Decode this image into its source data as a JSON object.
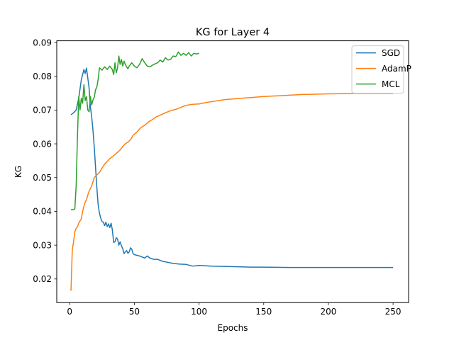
{
  "chart_data": {
    "type": "line",
    "title": "KG for Layer 4",
    "xlabel": "Epochs",
    "ylabel": "KG",
    "xlim": [
      -10,
      262
    ],
    "ylim": [
      0.013,
      0.0905
    ],
    "xticks": [
      0,
      50,
      100,
      150,
      200,
      250
    ],
    "yticks": [
      0.02,
      0.03,
      0.04,
      0.05,
      0.06,
      0.07,
      0.08,
      0.09
    ],
    "legend_position": "top-right",
    "grid": false,
    "series": [
      {
        "name": "SGD",
        "color": "#1f77b4",
        "points": [
          [
            1,
            0.0686
          ],
          [
            3,
            0.0692
          ],
          [
            5,
            0.07
          ],
          [
            7,
            0.0735
          ],
          [
            9,
            0.079
          ],
          [
            11,
            0.082
          ],
          [
            12,
            0.0808
          ],
          [
            13,
            0.0824
          ],
          [
            14,
            0.0795
          ],
          [
            15,
            0.0765
          ],
          [
            16,
            0.071
          ],
          [
            17,
            0.068
          ],
          [
            18,
            0.064
          ],
          [
            19,
            0.059
          ],
          [
            20,
            0.053
          ],
          [
            21,
            0.047
          ],
          [
            22,
            0.042
          ],
          [
            23,
            0.0395
          ],
          [
            24,
            0.038
          ],
          [
            25,
            0.037
          ],
          [
            26,
            0.0368
          ],
          [
            27,
            0.0358
          ],
          [
            28,
            0.0368
          ],
          [
            29,
            0.0355
          ],
          [
            30,
            0.0363
          ],
          [
            31,
            0.0352
          ],
          [
            32,
            0.0365
          ],
          [
            33,
            0.0345
          ],
          [
            34,
            0.0308
          ],
          [
            35,
            0.031
          ],
          [
            36,
            0.0322
          ],
          [
            37,
            0.0318
          ],
          [
            38,
            0.03
          ],
          [
            39,
            0.031
          ],
          [
            40,
            0.0298
          ],
          [
            41,
            0.029
          ],
          [
            42,
            0.0275
          ],
          [
            43,
            0.028
          ],
          [
            44,
            0.0284
          ],
          [
            45,
            0.0276
          ],
          [
            46,
            0.028
          ],
          [
            47,
            0.0292
          ],
          [
            48,
            0.0288
          ],
          [
            49,
            0.0275
          ],
          [
            50,
            0.0272
          ],
          [
            52,
            0.027
          ],
          [
            54,
            0.0268
          ],
          [
            56,
            0.0265
          ],
          [
            58,
            0.0262
          ],
          [
            60,
            0.0268
          ],
          [
            62,
            0.0262
          ],
          [
            65,
            0.0258
          ],
          [
            68,
            0.0258
          ],
          [
            72,
            0.0252
          ],
          [
            76,
            0.0249
          ],
          [
            80,
            0.0246
          ],
          [
            85,
            0.0244
          ],
          [
            90,
            0.0243
          ],
          [
            95,
            0.0238
          ],
          [
            100,
            0.024
          ],
          [
            110,
            0.0238
          ],
          [
            120,
            0.0237
          ],
          [
            130,
            0.0236
          ],
          [
            140,
            0.0235
          ],
          [
            150,
            0.0235
          ],
          [
            170,
            0.0234
          ],
          [
            190,
            0.0234
          ],
          [
            210,
            0.0234
          ],
          [
            230,
            0.0234
          ],
          [
            250,
            0.0234
          ]
        ]
      },
      {
        "name": "AdamP",
        "color": "#ff7f0e",
        "points": [
          [
            1,
            0.0165
          ],
          [
            2,
            0.0285
          ],
          [
            3,
            0.031
          ],
          [
            4,
            0.034
          ],
          [
            5,
            0.035
          ],
          [
            6,
            0.0355
          ],
          [
            7,
            0.0365
          ],
          [
            8,
            0.0372
          ],
          [
            9,
            0.0378
          ],
          [
            10,
            0.04
          ],
          [
            11,
            0.0415
          ],
          [
            12,
            0.0428
          ],
          [
            13,
            0.0435
          ],
          [
            14,
            0.0448
          ],
          [
            15,
            0.046
          ],
          [
            17,
            0.0475
          ],
          [
            19,
            0.05
          ],
          [
            21,
            0.0508
          ],
          [
            23,
            0.0515
          ],
          [
            25,
            0.0528
          ],
          [
            27,
            0.054
          ],
          [
            29,
            0.0548
          ],
          [
            31,
            0.0556
          ],
          [
            33,
            0.0562
          ],
          [
            35,
            0.0568
          ],
          [
            37,
            0.0575
          ],
          [
            39,
            0.0582
          ],
          [
            41,
            0.0592
          ],
          [
            43,
            0.06
          ],
          [
            45,
            0.0605
          ],
          [
            47,
            0.0612
          ],
          [
            49,
            0.0625
          ],
          [
            52,
            0.0635
          ],
          [
            55,
            0.0648
          ],
          [
            58,
            0.0655
          ],
          [
            61,
            0.0665
          ],
          [
            64,
            0.0672
          ],
          [
            67,
            0.068
          ],
          [
            70,
            0.0685
          ],
          [
            74,
            0.0692
          ],
          [
            78,
            0.0698
          ],
          [
            82,
            0.0702
          ],
          [
            86,
            0.0708
          ],
          [
            90,
            0.0714
          ],
          [
            95,
            0.0717
          ],
          [
            100,
            0.0718
          ],
          [
            105,
            0.0722
          ],
          [
            110,
            0.0725
          ],
          [
            115,
            0.0728
          ],
          [
            120,
            0.0731
          ],
          [
            130,
            0.0734
          ],
          [
            140,
            0.0737
          ],
          [
            150,
            0.074
          ],
          [
            160,
            0.0742
          ],
          [
            170,
            0.0744
          ],
          [
            180,
            0.0746
          ],
          [
            190,
            0.0747
          ],
          [
            200,
            0.0748
          ],
          [
            220,
            0.0749
          ],
          [
            250,
            0.0749
          ]
        ]
      },
      {
        "name": "MCL",
        "color": "#2ca02c",
        "points": [
          [
            1,
            0.0405
          ],
          [
            3,
            0.0405
          ],
          [
            4,
            0.0408
          ],
          [
            5,
            0.0475
          ],
          [
            6,
            0.062
          ],
          [
            7,
            0.074
          ],
          [
            8,
            0.07
          ],
          [
            9,
            0.0735
          ],
          [
            10,
            0.072
          ],
          [
            11,
            0.0775
          ],
          [
            12,
            0.0728
          ],
          [
            13,
            0.074
          ],
          [
            14,
            0.07
          ],
          [
            15,
            0.0695
          ],
          [
            16,
            0.074
          ],
          [
            17,
            0.0715
          ],
          [
            18,
            0.073
          ],
          [
            19,
            0.0738
          ],
          [
            20,
            0.076
          ],
          [
            21,
            0.0768
          ],
          [
            22,
            0.079
          ],
          [
            23,
            0.0825
          ],
          [
            24,
            0.0822
          ],
          [
            25,
            0.0818
          ],
          [
            27,
            0.0828
          ],
          [
            29,
            0.082
          ],
          [
            31,
            0.083
          ],
          [
            33,
            0.082
          ],
          [
            34,
            0.0805
          ],
          [
            35,
            0.084
          ],
          [
            36,
            0.081
          ],
          [
            37,
            0.0825
          ],
          [
            38,
            0.086
          ],
          [
            39,
            0.0835
          ],
          [
            40,
            0.085
          ],
          [
            41,
            0.083
          ],
          [
            42,
            0.0845
          ],
          [
            43,
            0.0835
          ],
          [
            44,
            0.0828
          ],
          [
            45,
            0.0822
          ],
          [
            46,
            0.083
          ],
          [
            48,
            0.084
          ],
          [
            50,
            0.083
          ],
          [
            52,
            0.0825
          ],
          [
            54,
            0.0835
          ],
          [
            56,
            0.0852
          ],
          [
            58,
            0.084
          ],
          [
            60,
            0.083
          ],
          [
            62,
            0.0828
          ],
          [
            65,
            0.0835
          ],
          [
            68,
            0.084
          ],
          [
            70,
            0.0848
          ],
          [
            72,
            0.0842
          ],
          [
            74,
            0.0855
          ],
          [
            76,
            0.0848
          ],
          [
            78,
            0.085
          ],
          [
            80,
            0.086
          ],
          [
            82,
            0.0858
          ],
          [
            84,
            0.0872
          ],
          [
            86,
            0.0862
          ],
          [
            88,
            0.0868
          ],
          [
            90,
            0.0862
          ],
          [
            92,
            0.087
          ],
          [
            94,
            0.086
          ],
          [
            96,
            0.0868
          ],
          [
            98,
            0.0866
          ],
          [
            100,
            0.0868
          ]
        ]
      }
    ]
  }
}
